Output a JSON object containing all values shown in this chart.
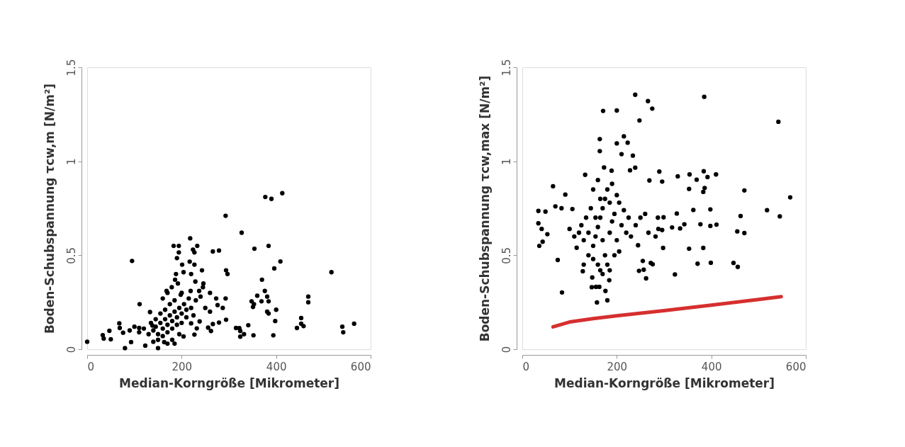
{
  "chart_data": [
    {
      "type": "scatter",
      "xlabel": "Median-Korngröße [Mikrometer]",
      "ylabel": "Boden-Schubspannung τcw,m [N/m²]",
      "xlim": [
        0,
        600
      ],
      "ylim": [
        0,
        1.5
      ],
      "xticks": [
        0,
        200,
        400,
        600
      ],
      "yticks": [
        0,
        0.5,
        1,
        1.5
      ],
      "grid": false,
      "series": [
        {
          "color": "#000000",
          "marker": "circle",
          "x": [
            377,
            390,
            413,
            293,
            327,
            218,
            183,
            194,
            233,
            354,
            384,
            266,
            279,
            224,
            227,
            194,
            95,
            190,
            217,
            227,
            201,
            409,
            396,
            517,
            243,
            294,
            297,
            204,
            188,
            220,
            186,
            229,
            246,
            192,
            370,
            179,
            245,
            168,
            198,
            219,
            237,
            260,
            376,
            360,
            468,
            468,
            381,
            384,
            369,
            348,
            353,
            351,
            111,
            273,
            293,
            276,
            287,
            400,
            381,
            384,
            398,
            453,
            453,
            458,
            444,
            540,
            542,
            565,
            294,
            279,
            266,
            262,
            315,
            322,
            324,
            341,
            332,
            324,
            352,
            394,
            0,
            33,
            35,
            47,
            50,
            68,
            69,
            76,
            80,
            93,
            110,
            123,
            133,
            150,
            138,
            163,
            204,
            227,
            232,
            220,
            256,
            238,
            140,
            145,
            150,
            155,
            160,
            165,
            170,
            175,
            180,
            185,
            190,
            195,
            200,
            205,
            210,
            150,
            160,
            170,
            180,
            190,
            145,
            155,
            165,
            175,
            185,
            170,
            180,
            200,
            210,
            220,
            230,
            240,
            130,
            120,
            110,
            100,
            90,
            160,
            170,
            200,
            215,
            250,
            260,
            140,
            135,
            195,
            185,
            225
          ],
          "values": [
            0.81,
            0.8,
            0.83,
            0.71,
            0.62,
            0.59,
            0.55,
            0.55,
            0.55,
            0.535,
            0.55,
            0.52,
            0.525,
            0.53,
            0.515,
            0.515,
            0.47,
            0.485,
            0.466,
            0.45,
            0.45,
            0.467,
            0.43,
            0.41,
            0.42,
            0.42,
            0.4,
            0.41,
            0.4,
            0.4,
            0.37,
            0.36,
            0.35,
            0.35,
            0.37,
            0.33,
            0.33,
            0.31,
            0.29,
            0.31,
            0.31,
            0.3,
            0.31,
            0.285,
            0.28,
            0.25,
            0.28,
            0.255,
            0.255,
            0.255,
            0.24,
            0.225,
            0.24,
            0.27,
            0.27,
            0.235,
            0.22,
            0.21,
            0.2,
            0.19,
            0.15,
            0.166,
            0.136,
            0.123,
            0.113,
            0.12,
            0.09,
            0.136,
            0.157,
            0.142,
            0.134,
            0.097,
            0.113,
            0.112,
            0.097,
            0.128,
            0.08,
            0.067,
            0.074,
            0.074,
            0.04,
            0.075,
            0.057,
            0.098,
            0.053,
            0.138,
            0.113,
            0.088,
            0.006,
            0.038,
            0.113,
            0.019,
            0.198,
            0.006,
            0.126,
            0.038,
            0.068,
            0.078,
            0.111,
            0.138,
            0.115,
            0.148,
            0.1,
            0.12,
            0.08,
            0.14,
            0.11,
            0.16,
            0.13,
            0.18,
            0.15,
            0.2,
            0.17,
            0.22,
            0.19,
            0.24,
            0.21,
            0.05,
            0.07,
            0.09,
            0.11,
            0.13,
            0.16,
            0.19,
            0.21,
            0.24,
            0.26,
            0.03,
            0.05,
            0.14,
            0.17,
            0.22,
            0.26,
            0.28,
            0.08,
            0.11,
            0.09,
            0.12,
            0.1,
            0.27,
            0.3,
            0.3,
            0.27,
            0.22,
            0.2,
            0.04,
            0.14,
            0.08,
            0.03,
            0.18
          ]
        }
      ]
    },
    {
      "type": "scatter",
      "xlabel": "Median-Korngröße [Mikrometer]",
      "ylabel": "Boden-Schubspannung τcw,max [N/m²]",
      "xlim": [
        0,
        600
      ],
      "ylim": [
        0,
        1.5
      ],
      "xticks": [
        0,
        200,
        400,
        600
      ],
      "yticks": [
        0,
        0.5,
        1,
        1.5
      ],
      "grid": false,
      "series": [
        {
          "color": "#000000",
          "marker": "circle",
          "x": [
            239,
            385,
            266,
            275,
            171,
            200,
            248,
            542,
            164,
            215,
            200,
            223,
            164,
            210,
            234,
            173,
            239,
            189,
            228,
            133,
            290,
            354,
            384,
            410,
            392,
            369,
            329,
            65,
            269,
            296,
            470,
            567,
            383,
            386,
            353,
            91,
            518,
            545,
            462,
            362,
            398,
            327,
            34,
            49,
            34,
            41,
            53,
            36,
            43,
            70,
            83,
            106,
            287,
            299,
            343,
            377,
            398,
            411,
            317,
            334,
            288,
            296,
            267,
            455,
            470,
            282,
            245,
            298,
            353,
            383,
            371,
            399,
            447,
            456,
            323,
            255,
            272,
            276,
            247,
            257,
            262,
            148,
            184,
            84,
            176,
            158,
            180,
            147,
            156,
            163,
            128,
            75,
            150,
            155,
            160,
            165,
            170,
            175,
            180,
            185,
            190,
            195,
            200,
            205,
            210,
            215,
            220,
            225,
            140,
            135,
            130,
            125,
            120,
            115,
            110,
            100,
            145,
            150,
            160,
            170,
            175,
            180,
            165,
            170,
            160,
            185,
            150,
            195,
            205,
            230,
            240,
            250,
            260,
            140,
            130,
            155,
            165,
            185,
            190,
            200
          ],
          "values": [
            1.354,
            1.343,
            1.32,
            1.28,
            1.268,
            1.27,
            1.217,
            1.21,
            1.118,
            1.133,
            1.095,
            1.099,
            1.054,
            1.038,
            1.03,
            0.967,
            0.966,
            0.95,
            0.952,
            0.928,
            0.945,
            0.93,
            0.947,
            0.93,
            0.916,
            0.902,
            0.92,
            0.867,
            0.898,
            0.892,
            0.845,
            0.808,
            0.837,
            0.858,
            0.853,
            0.823,
            0.74,
            0.707,
            0.709,
            0.741,
            0.744,
            0.722,
            0.736,
            0.732,
            0.67,
            0.64,
            0.612,
            0.55,
            0.572,
            0.76,
            0.75,
            0.746,
            0.7,
            0.702,
            0.665,
            0.665,
            0.656,
            0.663,
            0.648,
            0.643,
            0.64,
            0.634,
            0.62,
            0.627,
            0.618,
            0.6,
            0.553,
            0.539,
            0.535,
            0.539,
            0.455,
            0.46,
            0.459,
            0.438,
            0.398,
            0.47,
            0.459,
            0.452,
            0.417,
            0.423,
            0.377,
            0.382,
            0.367,
            0.302,
            0.31,
            0.249,
            0.26,
            0.33,
            0.332,
            0.332,
            0.415,
            0.475,
            0.55,
            0.6,
            0.65,
            0.7,
            0.75,
            0.8,
            0.85,
            0.62,
            0.68,
            0.72,
            0.58,
            0.78,
            0.66,
            0.74,
            0.62,
            0.7,
            0.62,
            0.7,
            0.58,
            0.66,
            0.62,
            0.54,
            0.6,
            0.64,
            0.75,
            0.85,
            0.9,
            0.58,
            0.5,
            0.45,
            0.42,
            0.4,
            0.45,
            0.42,
            0.48,
            0.5,
            0.52,
            0.6,
            0.66,
            0.7,
            0.72,
            0.5,
            0.45,
            0.7,
            0.8,
            0.78,
            0.88,
            0.82
          ]
        },
        {
          "type": "line",
          "color": "#d62f2f",
          "x": [
            65,
            100,
            150,
            200,
            300,
            400,
            500,
            548
          ],
          "values": [
            0.119,
            0.145,
            0.163,
            0.178,
            0.205,
            0.235,
            0.265,
            0.28
          ]
        }
      ]
    }
  ]
}
